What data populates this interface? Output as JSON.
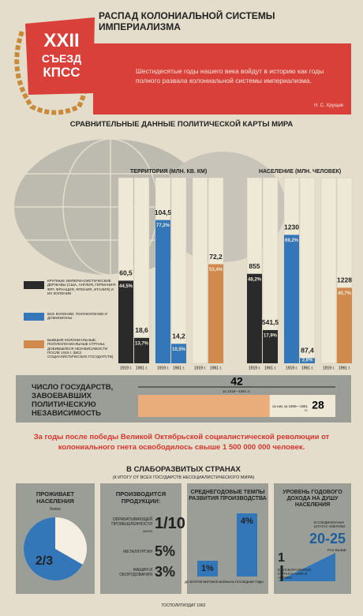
{
  "header": {
    "emblem": [
      "XXII",
      "СЪЕЗД",
      "КПСС"
    ],
    "title": "РАСПАД КОЛОНИАЛЬНОЙ СИСТЕМЫ ИМПЕРИАЛИЗМА",
    "quote": "Шестидесятые годы нашего века войдут в историю как годы полного развала колониальной системы империализма.",
    "author": "Н. С. Хрущев"
  },
  "map": {
    "title": "СРАВНИТЕЛЬНЫЕ ДАННЫЕ ПОЛИТИЧЕСКОЙ КАРТЫ МИРА",
    "legend": [
      {
        "name": "КРУПНЫЕ ИМПЕРИАЛИСТИЧЕСКИЕ ДЕРЖАВЫ (США, АНГЛИЯ, ГЕРМАНИЯ-ФРГ, ФРАНЦИЯ, ЯПОНИЯ, ИТАЛИЯ) И ИХ КОЛОНИИ",
        "color": "#2a2a2a"
      },
      {
        "name": "ВСЕ КОЛОНИИ, ПОЛУКОЛОНИИ И ДОМИНИОНЫ",
        "color": "#3377b8"
      },
      {
        "name": "БЫВШИЕ КОЛОНИАЛЬНЫЕ, ПОЛУКОЛОНИАЛЬНЫЕ СТРАНЫ, ДОБИВШИЕСЯ НЕЗАВИСИМОСТИ ПОСЛЕ 1919 г. (БЕЗ СОЦИАЛИСТИЧЕСКИХ ГОСУДАРСТВ)",
        "color": "#d08a4e"
      }
    ]
  },
  "chart_data": [
    {
      "type": "bar",
      "title": "ТЕРРИТОРИЯ (МЛН. КВ. КМ)",
      "categories": [
        "1919 г.",
        "1961 г."
      ],
      "ylim": [
        0,
        100
      ],
      "series": [
        {
          "color": "#2a2a2a",
          "values": [
            44.5,
            13.7
          ],
          "value_labels": [
            "44,5%",
            "13,7%"
          ],
          "totals": [
            {
              "value": 60.5,
              "label": "60,5"
            },
            {
              "value": 18.6,
              "label": "18,6"
            }
          ]
        },
        {
          "color": "#3377b8",
          "values": [
            77.2,
            10.5
          ],
          "value_labels": [
            "77,2%",
            "10,5%"
          ],
          "totals": [
            {
              "value": 104.5,
              "label": "104,5"
            },
            {
              "value": 14.2,
              "label": "14,2"
            }
          ]
        },
        {
          "color": "#d08a4e",
          "values": [
            null,
            53.4
          ],
          "value_labels": [
            null,
            "53,4%"
          ],
          "totals": [
            null,
            {
              "value": 72.2,
              "label": "72,2"
            }
          ]
        }
      ]
    },
    {
      "type": "bar",
      "title": "НАСЕЛЕНИЕ (МЛН. ЧЕЛОВЕК)",
      "categories": [
        "1919 г.",
        "1961 г."
      ],
      "ylim": [
        0,
        100
      ],
      "series": [
        {
          "color": "#2a2a2a",
          "values": [
            48.2,
            17.9
          ],
          "value_labels": [
            "48,2%",
            "17,9%"
          ],
          "totals": [
            {
              "value": 855,
              "label": "855"
            },
            {
              "value": 541.5,
              "label": "541,5"
            }
          ]
        },
        {
          "color": "#3377b8",
          "values": [
            69.2,
            2.8
          ],
          "value_labels": [
            "69,2%",
            "2,8%"
          ],
          "totals": [
            {
              "value": 1230,
              "label": "1230"
            },
            {
              "value": 87.4,
              "label": "87,4"
            }
          ]
        },
        {
          "color": "#d08a4e",
          "values": [
            null,
            40.7
          ],
          "value_labels": [
            null,
            "40,7%"
          ],
          "totals": [
            null,
            {
              "value": 1228,
              "label": "1228"
            }
          ]
        }
      ]
    }
  ],
  "independence": {
    "title": "ЧИСЛО ГОСУДАРСТВ, ЗАВОЕВАВШИХ ПОЛИТИЧЕСКУЮ НЕЗАВИСИМОСТЬ",
    "total": {
      "value": 42,
      "note": "за 1919—1961 гг."
    },
    "recent": {
      "value": 28,
      "note": "из них за 1956—1961 гг."
    }
  },
  "statement": "За годы после победы Великой Октябрьской социалистической революции от колониального гнета освободилось свыше 1 500 000 000 человек.",
  "underdeveloped": {
    "title": "В СЛАБОРАЗВИТЫХ СТРАНАХ",
    "subtitle": "(К ИТОГУ ОТ ВСЕХ ГОСУДАРСТВ НЕСОЦИАЛИСТИЧЕСКОГО МИРА)",
    "population": {
      "title": "ПРОЖИВАЕТ НАСЕЛЕНИЯ",
      "qualifier": "более",
      "share": {
        "value": 0.667,
        "label": "2/3"
      }
    },
    "production": {
      "title": "ПРОИЗВОДИТСЯ ПРОДУКЦИИ:",
      "items": [
        {
          "label": "ОБРАБАТЫВАЮЩЕЙ ПРОМЫШЛЕННОСТИ",
          "qualifier": "около",
          "value": "1/10"
        },
        {
          "label": "МЕТАЛЛУРГИИ",
          "value": "5%"
        },
        {
          "label": "МАШИН И ОБОРУДОВАНИЯ",
          "value": "3%"
        }
      ]
    },
    "growth": {
      "title": "СРЕДНЕГОДОВЫЕ ТЕМПЫ РАЗВИТИЯ ПРОИЗВОДСТВА",
      "ylim": [
        0,
        5
      ],
      "bars": [
        {
          "value": 1,
          "label": "1%",
          "period": "ДО ВТОРОЙ МИРОВОЙ ВОЙНЫ"
        },
        {
          "value": 4,
          "label": "4%",
          "period": "ЗА ПОСЛЕДНИЕ ГОДЫ"
        }
      ]
    },
    "income": {
      "title": "УРОВЕНЬ ГОДОВОГО ДОХОДА НА ДУШУ НАСЕЛЕНИЯ",
      "items": [
        {
          "label": "В СЛАБОРАЗВИТЫХ СТРАНАХ АЗИИ И АФРИКИ",
          "value": "1"
        },
        {
          "label": "В СОЕДИНЕННЫХ ШТАТАХ АМЕРИКИ",
          "value": "20-25",
          "note": "РАЗ ВЫШЕ"
        }
      ]
    }
  },
  "footer": "ГОСПОЛИТИЗДАТ 1962"
}
